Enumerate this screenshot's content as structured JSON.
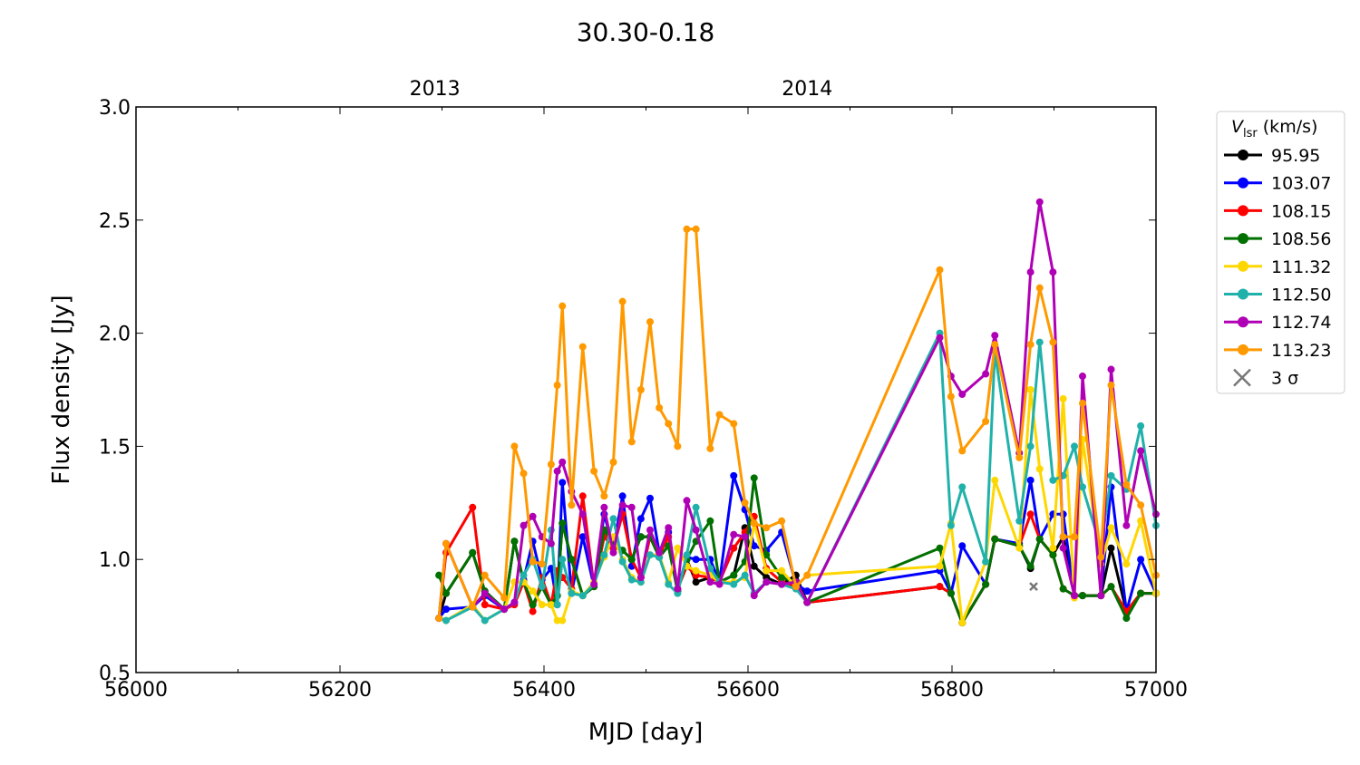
{
  "chart_data": {
    "type": "line",
    "title": "30.30-0.18",
    "xlabel": "MJD [day]",
    "ylabel": "Flux density [Jy]",
    "xlim": [
      56000,
      57000
    ],
    "ylim": [
      0.5,
      3.0
    ],
    "xticks": [
      56000,
      56200,
      56400,
      56600,
      56800,
      57000
    ],
    "yticks": [
      "0.5",
      "1.0",
      "1.5",
      "2.0",
      "2.5",
      "3.0"
    ],
    "top_axis": {
      "ticks": [
        {
          "label": "2013",
          "mjd": 56293
        },
        {
          "label": "2014",
          "mjd": 56658
        }
      ]
    },
    "legend": {
      "title": "V_lsr (km/s)",
      "title_main": "V",
      "title_sub": "lsr",
      "title_rest": " (km/s)",
      "placement": "right-outside",
      "sigma_label": "3 σ"
    },
    "x": [
      56297,
      56304,
      56330,
      56342,
      56361,
      56371,
      56380,
      56389,
      56398,
      56407,
      56413,
      56418,
      56427,
      56438,
      56449,
      56459,
      56468,
      56477,
      56486,
      56495,
      56504,
      56513,
      56522,
      56531,
      56540,
      56549,
      56563,
      56572,
      56586,
      56597,
      56606,
      56618,
      56633,
      56647,
      56658,
      56788,
      56799,
      56810,
      56833,
      56842,
      56866,
      56877,
      56886,
      56899,
      56909,
      56920,
      56928,
      56946,
      56956,
      56971,
      56985,
      57000
    ],
    "series": [
      {
        "name": "95.95",
        "color": "#000000",
        "values": [
          0.74,
          0.85,
          1.03,
          0.86,
          0.78,
          1.08,
          0.9,
          0.8,
          0.88,
          0.8,
          0.84,
          1.16,
          1.0,
          0.84,
          0.88,
          1.13,
          1.08,
          1.04,
          1.0,
          1.1,
          1.1,
          1.01,
          1.06,
          0.86,
          1.0,
          0.9,
          0.92,
          0.9,
          0.93,
          1.14,
          0.97,
          0.92,
          0.89,
          0.93,
          0.81,
          0.88,
          0.85,
          0.72,
          0.89,
          1.09,
          1.06,
          0.96,
          1.09,
          1.02,
          1.1,
          0.84,
          0.84,
          0.84,
          1.05,
          0.77,
          0.85,
          0.85
        ]
      },
      {
        "name": "103.07",
        "color": "#0000ff",
        "values": [
          0.74,
          0.78,
          0.79,
          0.84,
          0.78,
          0.81,
          0.91,
          1.08,
          0.91,
          0.96,
          0.8,
          1.34,
          0.85,
          1.1,
          0.88,
          1.2,
          1.05,
          1.28,
          0.97,
          1.18,
          1.27,
          1.03,
          1.12,
          0.87,
          1.01,
          1.0,
          1.0,
          0.9,
          1.37,
          1.22,
          1.06,
          1.04,
          1.12,
          0.89,
          0.86,
          0.95,
          0.85,
          1.06,
          0.89,
          1.09,
          1.07,
          1.35,
          1.09,
          1.2,
          1.2,
          0.84,
          0.84,
          0.84,
          1.32,
          0.77,
          1.0,
          0.85
        ]
      },
      {
        "name": "108.15",
        "color": "#ff0000",
        "values": [
          0.74,
          1.03,
          1.23,
          0.8,
          0.78,
          0.8,
          0.9,
          0.77,
          0.92,
          0.8,
          0.95,
          0.92,
          0.87,
          1.28,
          0.88,
          1.1,
          1.05,
          1.2,
          1.0,
          0.92,
          1.1,
          1.02,
          1.1,
          0.87,
          0.97,
          0.93,
          0.92,
          0.9,
          1.05,
          1.12,
          1.19,
          0.96,
          0.9,
          0.88,
          0.81,
          0.88,
          0.85,
          0.72,
          0.89,
          1.09,
          1.06,
          1.2,
          1.09,
          1.02,
          0.87,
          0.84,
          0.84,
          0.84,
          0.88,
          0.77,
          0.85,
          0.85
        ]
      },
      {
        "name": "108.56",
        "color": "#007000",
        "values": [
          0.93,
          0.85,
          1.03,
          0.86,
          0.78,
          1.08,
          0.9,
          0.8,
          0.88,
          0.8,
          0.84,
          1.16,
          1.0,
          0.84,
          0.88,
          1.13,
          1.08,
          1.04,
          1.0,
          1.1,
          1.1,
          1.01,
          1.06,
          0.86,
          1.0,
          1.08,
          1.17,
          0.9,
          0.93,
          0.99,
          1.36,
          1.02,
          0.92,
          0.9,
          0.81,
          1.05,
          0.85,
          0.72,
          0.89,
          1.09,
          1.06,
          0.97,
          1.09,
          1.02,
          0.87,
          0.84,
          0.84,
          0.84,
          0.88,
          0.74,
          0.85,
          0.85
        ]
      },
      {
        "name": "111.32",
        "color": "#ffd700",
        "values": [
          0.74,
          0.73,
          0.8,
          0.73,
          0.78,
          0.9,
          0.9,
          0.86,
          0.8,
          0.8,
          0.73,
          0.73,
          0.86,
          0.84,
          0.9,
          1.01,
          1.1,
          1.0,
          0.92,
          0.9,
          1.02,
          1.02,
          0.9,
          1.05,
          0.97,
          0.95,
          0.93,
          0.9,
          0.9,
          0.92,
          1.16,
          0.95,
          0.95,
          0.88,
          0.93,
          0.97,
          1.16,
          0.72,
          0.99,
          1.35,
          1.05,
          1.75,
          1.4,
          1.05,
          1.71,
          0.83,
          1.53,
          0.98,
          1.14,
          0.98,
          1.17,
          0.85
        ]
      },
      {
        "name": "112.50",
        "color": "#20b2aa",
        "values": [
          0.74,
          0.73,
          0.79,
          0.73,
          0.78,
          0.81,
          0.93,
          1.0,
          0.88,
          1.13,
          0.8,
          1.0,
          0.85,
          0.84,
          0.89,
          1.02,
          1.18,
          0.99,
          0.91,
          0.9,
          1.02,
          1.01,
          0.89,
          0.85,
          1.02,
          1.23,
          0.96,
          0.9,
          0.89,
          0.93,
          0.85,
          0.9,
          0.89,
          0.87,
          0.81,
          2.0,
          1.15,
          1.32,
          0.99,
          1.92,
          1.17,
          1.5,
          1.96,
          1.35,
          1.37,
          1.5,
          1.32,
          1.05,
          1.37,
          1.31,
          1.59,
          1.15
        ]
      },
      {
        "name": "112.74",
        "color": "#b000b5",
        "values": [
          0.74,
          1.07,
          0.79,
          0.85,
          0.78,
          0.81,
          1.15,
          1.19,
          1.1,
          1.07,
          1.39,
          1.43,
          1.3,
          1.2,
          0.89,
          1.23,
          1.03,
          1.24,
          1.23,
          0.92,
          1.13,
          1.03,
          1.14,
          0.87,
          1.26,
          1.13,
          0.9,
          0.89,
          1.11,
          1.1,
          0.84,
          0.9,
          0.89,
          0.9,
          0.81,
          1.98,
          1.81,
          1.73,
          1.82,
          1.99,
          1.47,
          2.27,
          2.58,
          2.27,
          1.05,
          0.84,
          1.81,
          0.84,
          1.84,
          1.15,
          1.48,
          1.2
        ]
      },
      {
        "name": "113.23",
        "color": "#ff9900",
        "values": [
          0.74,
          1.07,
          0.79,
          0.93,
          0.83,
          1.5,
          1.38,
          0.99,
          0.98,
          1.42,
          1.77,
          2.12,
          1.24,
          1.94,
          1.39,
          1.28,
          1.43,
          2.14,
          1.52,
          1.75,
          2.05,
          1.67,
          1.6,
          1.5,
          2.46,
          2.46,
          1.49,
          1.64,
          1.6,
          1.25,
          1.16,
          1.14,
          1.17,
          0.88,
          0.93,
          2.28,
          1.72,
          1.48,
          1.61,
          1.95,
          1.45,
          1.95,
          2.2,
          1.96,
          1.1,
          1.1,
          1.69,
          1.01,
          1.77,
          1.33,
          1.24,
          0.93
        ]
      }
    ],
    "three_sigma_points": [
      {
        "x": 56880,
        "y": 0.88
      }
    ]
  }
}
